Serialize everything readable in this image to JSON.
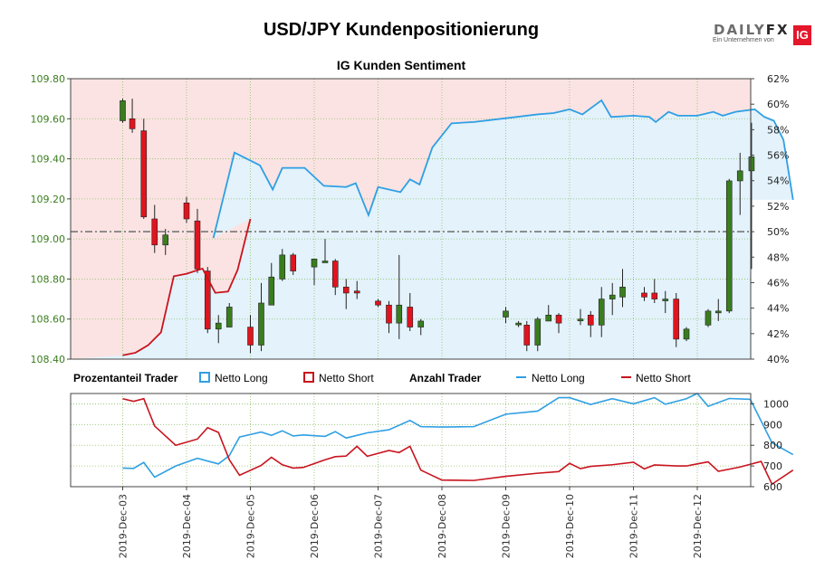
{
  "header": {
    "title": "USD/JPY Kundenpositionierung",
    "subtitle": "IG Kunden Sentiment",
    "logo_main": "DAILY",
    "logo_fx": "FX",
    "logo_tagline": "Ein Unternehmen von",
    "logo_badge": "IG"
  },
  "legend": {
    "group1_title": "Prozentanteil Trader",
    "long_label": "Netto Long",
    "short_label": "Netto Short",
    "group2_title": "Anzahl Trader",
    "long_label2": "Netto Long",
    "short_label2": "Netto Short"
  },
  "colors": {
    "up": "#3a7d1e",
    "down": "#e0141e",
    "long": "#2f9fe3",
    "short": "#c8141e",
    "long_fill": "#e3f2fb",
    "short_fill": "#fbe3e3",
    "price_tick": "#3a7d1e"
  },
  "chart_data": [
    {
      "type": "candlestick",
      "title": "IG Kunden Sentiment",
      "ylim": [
        108.4,
        109.8
      ],
      "y_ticks": [
        "108.40",
        "108.60",
        "108.80",
        "109.00",
        "109.20",
        "109.40",
        "109.60",
        "109.80"
      ],
      "y2lim": [
        40,
        62
      ],
      "y2_ticks": [
        "40%",
        "42%",
        "44%",
        "46%",
        "48%",
        "50%",
        "52%",
        "54%",
        "56%",
        "58%",
        "60%",
        "62%"
      ],
      "reference_line_pct": 50,
      "x_categories": [
        "2019-Dec-03",
        "2019-Dec-04",
        "2019-Dec-05",
        "2019-Dec-06",
        "2019-Dec-07",
        "2019-Dec-08",
        "2019-Dec-09",
        "2019-Dec-10",
        "2019-Dec-11",
        "2019-Dec-12"
      ],
      "candles": [
        {
          "t": 0.0,
          "o": 109.59,
          "h": 109.7,
          "l": 109.58,
          "c": 109.69
        },
        {
          "t": 0.15,
          "o": 109.6,
          "h": 109.7,
          "l": 109.53,
          "c": 109.55
        },
        {
          "t": 0.33,
          "o": 109.54,
          "h": 109.6,
          "l": 109.1,
          "c": 109.11
        },
        {
          "t": 0.5,
          "o": 109.1,
          "h": 109.17,
          "l": 108.93,
          "c": 108.97
        },
        {
          "t": 0.67,
          "o": 108.97,
          "h": 109.05,
          "l": 108.92,
          "c": 109.02
        },
        {
          "t": 1.0,
          "o": 109.18,
          "h": 109.21,
          "l": 109.08,
          "c": 109.1
        },
        {
          "t": 1.17,
          "o": 109.09,
          "h": 109.15,
          "l": 108.83,
          "c": 108.85
        },
        {
          "t": 1.33,
          "o": 108.84,
          "h": 108.86,
          "l": 108.53,
          "c": 108.55
        },
        {
          "t": 1.5,
          "o": 108.55,
          "h": 108.62,
          "l": 108.48,
          "c": 108.58
        },
        {
          "t": 1.67,
          "o": 108.56,
          "h": 108.68,
          "l": 108.56,
          "c": 108.66
        },
        {
          "t": 2.0,
          "o": 108.56,
          "h": 108.62,
          "l": 108.43,
          "c": 108.47
        },
        {
          "t": 2.17,
          "o": 108.47,
          "h": 108.78,
          "l": 108.44,
          "c": 108.68
        },
        {
          "t": 2.33,
          "o": 108.67,
          "h": 108.88,
          "l": 108.67,
          "c": 108.81
        },
        {
          "t": 2.5,
          "o": 108.8,
          "h": 108.95,
          "l": 108.79,
          "c": 108.92
        },
        {
          "t": 2.67,
          "o": 108.92,
          "h": 108.93,
          "l": 108.82,
          "c": 108.84
        },
        {
          "t": 3.0,
          "o": 108.86,
          "h": 108.9,
          "l": 108.77,
          "c": 108.9
        },
        {
          "t": 3.17,
          "o": 108.89,
          "h": 109.0,
          "l": 108.89,
          "c": 108.89
        },
        {
          "t": 3.33,
          "o": 108.89,
          "h": 108.9,
          "l": 108.72,
          "c": 108.76
        },
        {
          "t": 3.5,
          "o": 108.76,
          "h": 108.8,
          "l": 108.65,
          "c": 108.73
        },
        {
          "t": 3.67,
          "o": 108.74,
          "h": 108.79,
          "l": 108.7,
          "c": 108.73
        },
        {
          "t": 4.0,
          "o": 108.69,
          "h": 108.7,
          "l": 108.66,
          "c": 108.67
        },
        {
          "t": 4.17,
          "o": 108.67,
          "h": 108.69,
          "l": 108.53,
          "c": 108.58
        },
        {
          "t": 4.33,
          "o": 108.58,
          "h": 108.92,
          "l": 108.5,
          "c": 108.67
        },
        {
          "t": 4.5,
          "o": 108.66,
          "h": 108.73,
          "l": 108.54,
          "c": 108.56
        },
        {
          "t": 4.67,
          "o": 108.56,
          "h": 108.6,
          "l": 108.52,
          "c": 108.59
        },
        {
          "t": 6.0,
          "o": 108.61,
          "h": 108.66,
          "l": 108.58,
          "c": 108.64
        },
        {
          "t": 6.2,
          "o": 108.58,
          "h": 108.59,
          "l": 108.56,
          "c": 108.58
        },
        {
          "t": 6.33,
          "o": 108.57,
          "h": 108.59,
          "l": 108.44,
          "c": 108.47
        },
        {
          "t": 6.5,
          "o": 108.47,
          "h": 108.61,
          "l": 108.44,
          "c": 108.6
        },
        {
          "t": 6.67,
          "o": 108.59,
          "h": 108.67,
          "l": 108.59,
          "c": 108.62
        },
        {
          "t": 6.83,
          "o": 108.62,
          "h": 108.63,
          "l": 108.53,
          "c": 108.58
        },
        {
          "t": 7.17,
          "o": 108.6,
          "h": 108.65,
          "l": 108.57,
          "c": 108.6
        },
        {
          "t": 7.33,
          "o": 108.62,
          "h": 108.64,
          "l": 108.51,
          "c": 108.57
        },
        {
          "t": 7.5,
          "o": 108.57,
          "h": 108.76,
          "l": 108.51,
          "c": 108.7
        },
        {
          "t": 7.67,
          "o": 108.7,
          "h": 108.78,
          "l": 108.62,
          "c": 108.72
        },
        {
          "t": 7.83,
          "o": 108.71,
          "h": 108.85,
          "l": 108.66,
          "c": 108.76
        },
        {
          "t": 8.17,
          "o": 108.73,
          "h": 108.76,
          "l": 108.69,
          "c": 108.71
        },
        {
          "t": 8.33,
          "o": 108.73,
          "h": 108.8,
          "l": 108.68,
          "c": 108.7
        },
        {
          "t": 8.5,
          "o": 108.7,
          "h": 108.74,
          "l": 108.63,
          "c": 108.7
        },
        {
          "t": 8.67,
          "o": 108.7,
          "h": 108.73,
          "l": 108.46,
          "c": 108.5
        },
        {
          "t": 8.83,
          "o": 108.5,
          "h": 108.56,
          "l": 108.49,
          "c": 108.55
        },
        {
          "t": 9.17,
          "o": 108.57,
          "h": 108.65,
          "l": 108.56,
          "c": 108.64
        },
        {
          "t": 9.33,
          "o": 108.64,
          "h": 108.7,
          "l": 108.59,
          "c": 108.64
        },
        {
          "t": 9.5,
          "o": 108.64,
          "h": 109.3,
          "l": 108.63,
          "c": 109.29
        },
        {
          "t": 9.67,
          "o": 109.29,
          "h": 109.43,
          "l": 109.12,
          "c": 109.34
        },
        {
          "t": 9.85,
          "o": 109.34,
          "h": 109.58,
          "l": 108.85,
          "c": 109.41
        }
      ],
      "long_pct": [
        {
          "t": 1.42,
          "v": 49.5
        },
        {
          "t": 1.75,
          "v": 56.2
        },
        {
          "t": 2.15,
          "v": 55.2
        },
        {
          "t": 2.35,
          "v": 53.3
        },
        {
          "t": 2.5,
          "v": 55.0
        },
        {
          "t": 2.85,
          "v": 55.0
        },
        {
          "t": 3.15,
          "v": 53.6
        },
        {
          "t": 3.5,
          "v": 53.5
        },
        {
          "t": 3.65,
          "v": 53.8
        },
        {
          "t": 3.85,
          "v": 51.3
        },
        {
          "t": 4.0,
          "v": 53.5
        },
        {
          "t": 4.35,
          "v": 53.1
        },
        {
          "t": 4.5,
          "v": 54.1
        },
        {
          "t": 4.65,
          "v": 53.7
        },
        {
          "t": 4.85,
          "v": 56.6
        },
        {
          "t": 5.15,
          "v": 58.5
        },
        {
          "t": 5.5,
          "v": 58.6
        },
        {
          "t": 6.0,
          "v": 58.9
        },
        {
          "t": 6.5,
          "v": 59.2
        },
        {
          "t": 6.75,
          "v": 59.3
        },
        {
          "t": 7.0,
          "v": 59.6
        },
        {
          "t": 7.2,
          "v": 59.2
        },
        {
          "t": 7.5,
          "v": 60.3
        },
        {
          "t": 7.65,
          "v": 59.0
        },
        {
          "t": 8.0,
          "v": 59.1
        },
        {
          "t": 8.25,
          "v": 59.0
        },
        {
          "t": 8.35,
          "v": 58.6
        },
        {
          "t": 8.55,
          "v": 59.4
        },
        {
          "t": 8.7,
          "v": 59.1
        },
        {
          "t": 9.0,
          "v": 59.1
        },
        {
          "t": 9.25,
          "v": 59.4
        },
        {
          "t": 9.4,
          "v": 59.1
        },
        {
          "t": 9.6,
          "v": 59.4
        },
        {
          "t": 9.9,
          "v": 59.6
        },
        {
          "t": 10.05,
          "v": 59.0
        },
        {
          "t": 10.2,
          "v": 58.7
        },
        {
          "t": 10.35,
          "v": 57.2
        },
        {
          "t": 10.5,
          "v": 52.5
        }
      ],
      "short_pct": [
        {
          "t": 0.0,
          "v": 40.3
        },
        {
          "t": 0.2,
          "v": 40.5
        },
        {
          "t": 0.4,
          "v": 41.1
        },
        {
          "t": 0.6,
          "v": 42.1
        },
        {
          "t": 0.8,
          "v": 46.5
        },
        {
          "t": 1.0,
          "v": 46.7
        },
        {
          "t": 1.25,
          "v": 47.1
        },
        {
          "t": 1.45,
          "v": 45.2
        },
        {
          "t": 1.65,
          "v": 45.3
        },
        {
          "t": 1.8,
          "v": 47.0
        },
        {
          "t": 2.0,
          "v": 51.0
        }
      ],
      "long_pct_series_break": 1.42
    },
    {
      "type": "line",
      "ylim": [
        600,
        1050
      ],
      "y_ticks": [
        "600",
        "700",
        "800",
        "900",
        "1000"
      ],
      "series": [
        {
          "name": "Netto Long",
          "points": [
            {
              "t": 0.0,
              "v": 690
            },
            {
              "t": 0.17,
              "v": 688
            },
            {
              "t": 0.33,
              "v": 717
            },
            {
              "t": 0.5,
              "v": 646
            },
            {
              "t": 0.83,
              "v": 700
            },
            {
              "t": 1.17,
              "v": 737
            },
            {
              "t": 1.5,
              "v": 710
            },
            {
              "t": 1.67,
              "v": 750
            },
            {
              "t": 1.83,
              "v": 840
            },
            {
              "t": 2.17,
              "v": 864
            },
            {
              "t": 2.33,
              "v": 848
            },
            {
              "t": 2.5,
              "v": 870
            },
            {
              "t": 2.67,
              "v": 845
            },
            {
              "t": 2.83,
              "v": 850
            },
            {
              "t": 3.17,
              "v": 843
            },
            {
              "t": 3.33,
              "v": 866
            },
            {
              "t": 3.5,
              "v": 835
            },
            {
              "t": 3.83,
              "v": 860
            },
            {
              "t": 4.17,
              "v": 875
            },
            {
              "t": 4.5,
              "v": 920
            },
            {
              "t": 4.67,
              "v": 890
            },
            {
              "t": 5.0,
              "v": 888
            },
            {
              "t": 5.5,
              "v": 890
            },
            {
              "t": 6.0,
              "v": 950
            },
            {
              "t": 6.5,
              "v": 965
            },
            {
              "t": 6.83,
              "v": 1030
            },
            {
              "t": 7.0,
              "v": 1030
            },
            {
              "t": 7.33,
              "v": 997
            },
            {
              "t": 7.67,
              "v": 1025
            },
            {
              "t": 8.0,
              "v": 1000
            },
            {
              "t": 8.33,
              "v": 1030
            },
            {
              "t": 8.5,
              "v": 998
            },
            {
              "t": 8.83,
              "v": 1025
            },
            {
              "t": 9.0,
              "v": 1050
            },
            {
              "t": 9.17,
              "v": 988
            },
            {
              "t": 9.5,
              "v": 1026
            },
            {
              "t": 9.83,
              "v": 1022
            },
            {
              "t": 10.17,
              "v": 812
            },
            {
              "t": 10.5,
              "v": 755
            }
          ]
        },
        {
          "name": "Netto Short",
          "points": [
            {
              "t": 0.0,
              "v": 1025
            },
            {
              "t": 0.17,
              "v": 1012
            },
            {
              "t": 0.33,
              "v": 1025
            },
            {
              "t": 0.5,
              "v": 893
            },
            {
              "t": 0.83,
              "v": 800
            },
            {
              "t": 1.17,
              "v": 830
            },
            {
              "t": 1.33,
              "v": 885
            },
            {
              "t": 1.5,
              "v": 862
            },
            {
              "t": 1.67,
              "v": 730
            },
            {
              "t": 1.83,
              "v": 655
            },
            {
              "t": 2.17,
              "v": 703
            },
            {
              "t": 2.33,
              "v": 742
            },
            {
              "t": 2.5,
              "v": 706
            },
            {
              "t": 2.67,
              "v": 690
            },
            {
              "t": 2.83,
              "v": 693
            },
            {
              "t": 3.17,
              "v": 730
            },
            {
              "t": 3.33,
              "v": 745
            },
            {
              "t": 3.5,
              "v": 748
            },
            {
              "t": 3.67,
              "v": 795
            },
            {
              "t": 3.83,
              "v": 747
            },
            {
              "t": 4.17,
              "v": 775
            },
            {
              "t": 4.33,
              "v": 765
            },
            {
              "t": 4.5,
              "v": 795
            },
            {
              "t": 4.67,
              "v": 680
            },
            {
              "t": 5.0,
              "v": 632
            },
            {
              "t": 5.5,
              "v": 630
            },
            {
              "t": 6.0,
              "v": 650
            },
            {
              "t": 6.5,
              "v": 665
            },
            {
              "t": 6.83,
              "v": 673
            },
            {
              "t": 7.0,
              "v": 713
            },
            {
              "t": 7.17,
              "v": 687
            },
            {
              "t": 7.33,
              "v": 698
            },
            {
              "t": 7.67,
              "v": 706
            },
            {
              "t": 8.0,
              "v": 718
            },
            {
              "t": 8.17,
              "v": 686
            },
            {
              "t": 8.33,
              "v": 705
            },
            {
              "t": 8.67,
              "v": 700
            },
            {
              "t": 8.83,
              "v": 700
            },
            {
              "t": 9.17,
              "v": 720
            },
            {
              "t": 9.33,
              "v": 674
            },
            {
              "t": 9.67,
              "v": 695
            },
            {
              "t": 10.0,
              "v": 722
            },
            {
              "t": 10.17,
              "v": 612
            },
            {
              "t": 10.5,
              "v": 680
            }
          ]
        }
      ]
    }
  ]
}
